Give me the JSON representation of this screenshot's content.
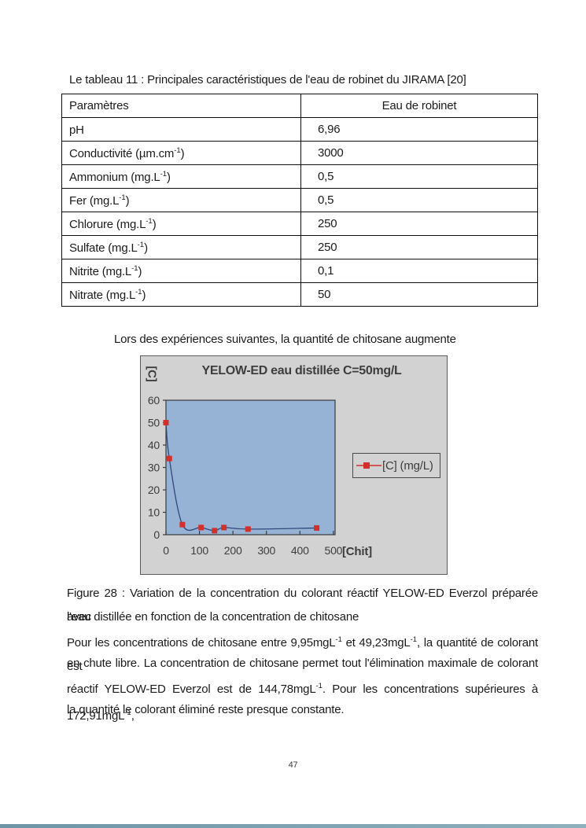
{
  "page": {
    "number": "47"
  },
  "table_section": {
    "caption": "Le tableau 11 : Principales caractéristiques de l'eau de robinet du JIRAMA [20]",
    "header": {
      "col1": "Paramètres",
      "col2": "Eau de robinet"
    },
    "rows": [
      {
        "pre": "pH",
        "sup": "",
        "post": "",
        "value": "6,96"
      },
      {
        "pre": "Conductivité (µm.cm",
        "sup": "-1",
        "post": ")",
        "value": "3000"
      },
      {
        "pre": "Ammonium (mg.L",
        "sup": "-1",
        "post": ")",
        "value": "0,5"
      },
      {
        "pre": "Fer (mg.L",
        "sup": "-1",
        "post": ")",
        "value": "0,5"
      },
      {
        "pre": "Chlorure (mg.L",
        "sup": "-1",
        "post": ")",
        "value": "250"
      },
      {
        "pre": "Sulfate (mg.L",
        "sup": "-1",
        "post": ")",
        "value": "250"
      },
      {
        "pre": "Nitrite (mg.L",
        "sup": "-1",
        "post": ")",
        "value": "0,1"
      },
      {
        "pre": "Nitrate (mg.L",
        "sup": "-1",
        "post": ")",
        "value": "50"
      }
    ]
  },
  "intro_text": "Lors des expériences suivantes, la quantité de chitosane augmente",
  "chart_data": {
    "type": "line",
    "title": "YELOW-ED eau distillée C=50mg/L",
    "ylabel": "[C]",
    "xlabel": "[Chit]",
    "legend": [
      "[C] (mg/L)"
    ],
    "legend_position": "right",
    "grid": false,
    "x": [
      0,
      10,
      49,
      105,
      145,
      173,
      245,
      450
    ],
    "y": [
      50,
      34,
      4.5,
      3.2,
      1.8,
      3.2,
      2.5,
      3
    ],
    "xticks": [
      0,
      100,
      200,
      300,
      400,
      500
    ],
    "yticks": [
      0,
      10,
      20,
      30,
      40,
      50,
      60
    ],
    "xlim": [
      0,
      505
    ],
    "ylim": [
      0,
      60
    ],
    "colors": {
      "marker": "#d2302a",
      "line": "#31487a",
      "plot_bg": "#96b3d6",
      "chart_bg": "#d2d2d2",
      "axis": "#3a3a3a",
      "text": "#3d3d3d"
    }
  },
  "figure_text": {
    "line1": "Figure 28 : Variation de la concentration du colorant réactif YELOW-ED Everzol préparée avec",
    "line2": "l'eau distillée en fonction de la concentration de chitosane",
    "line3a": "Pour les concentrations de chitosane entre 9,95mgL",
    "line3sup1": "-1",
    "line3b": " et 49,23mgL",
    "line3sup2": "-1",
    "line3c": ", la quantité de colorant est",
    "line4": "en chute libre. La concentration de chitosane permet tout l'élimination maximale de colorant",
    "line5a": "réactif YELOW-ED Everzol est de 144,78mgL",
    "line5sup1": "-1",
    "line5b": ". Pour les concentrations supérieures à 172,91mgL",
    "line5sup2": "-1",
    "line5c": ",",
    "line6": "la quantité le colorant éliminé reste presque constante."
  }
}
